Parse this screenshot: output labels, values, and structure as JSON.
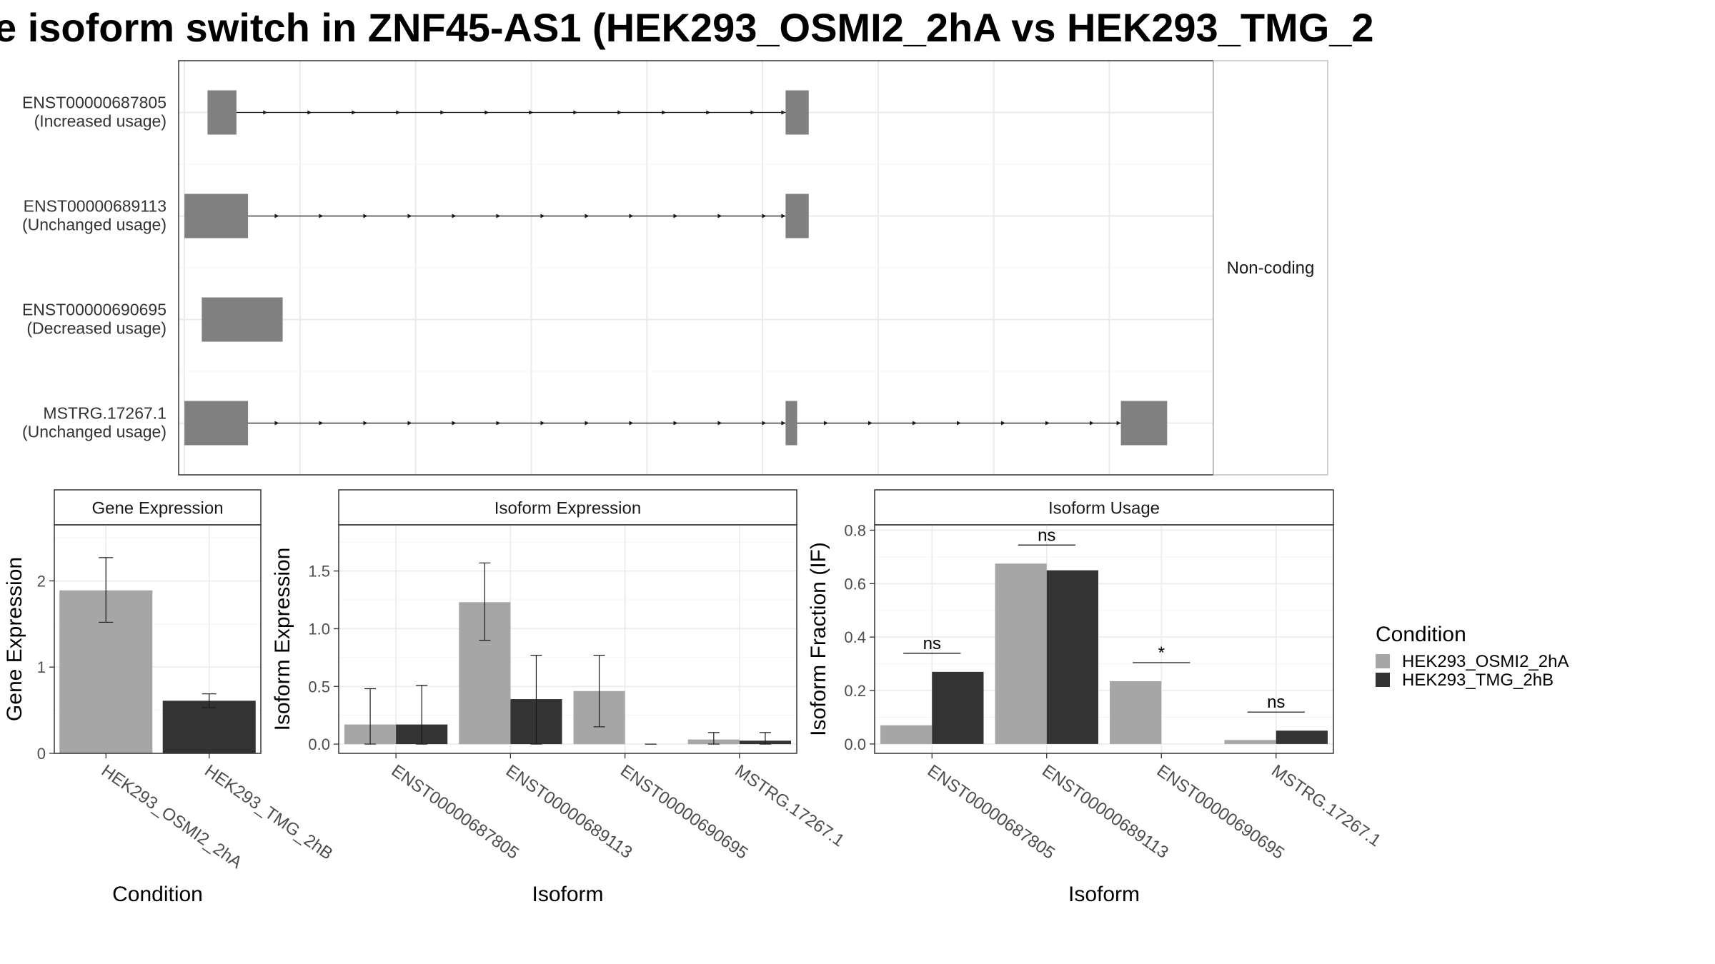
{
  "title": "e isoform switch in ZNF45-AS1 (HEK293_OSMI2_2hA vs HEK293_TMG_2",
  "colors": {
    "HEK293_OSMI2_2hA": "#a6a6a6",
    "HEK293_TMG_2hB": "#333333",
    "exon": "#808080",
    "grid": "#ebebeb"
  },
  "structure": {
    "strip_label": "Non-coding",
    "transcripts": [
      {
        "id": "ENST00000687805",
        "usage": "(Increased usage)",
        "exons": [
          [
            0.2,
            0.45
          ],
          [
            5.2,
            5.4
          ]
        ]
      },
      {
        "id": "ENST00000689113",
        "usage": "(Unchanged usage)",
        "exons": [
          [
            0.0,
            0.55
          ],
          [
            5.2,
            5.4
          ]
        ]
      },
      {
        "id": "ENST00000690695",
        "usage": "(Decreased usage)",
        "exons": [
          [
            0.15,
            0.85
          ]
        ]
      },
      {
        "id": "MSTRG.17267.1",
        "usage": "(Unchanged usage)",
        "exons": [
          [
            0.0,
            0.55
          ],
          [
            5.2,
            5.3
          ],
          [
            8.1,
            8.5
          ]
        ]
      }
    ]
  },
  "legend": {
    "title": "Condition",
    "items": [
      "HEK293_OSMI2_2hA",
      "HEK293_TMG_2hB"
    ]
  },
  "chart_data": [
    {
      "type": "bar",
      "title": "Gene Expression",
      "xlabel": "Condition",
      "ylabel": "Gene Expression",
      "categories": [
        "HEK293_OSMI2_2hA",
        "HEK293_TMG_2hB"
      ],
      "values": [
        1.89,
        0.61
      ],
      "errors": [
        [
          1.52,
          2.27
        ],
        [
          0.53,
          0.69
        ]
      ],
      "ylim": [
        0,
        2.65
      ],
      "yticks": [
        "0",
        "1",
        "2"
      ]
    },
    {
      "type": "bar",
      "title": "Isoform Expression",
      "xlabel": "Isoform",
      "ylabel": "Isoform Expression",
      "categories": [
        "ENST00000687805",
        "ENST00000689113",
        "ENST00000690695",
        "MSTRG.17267.1"
      ],
      "series": [
        {
          "name": "HEK293_OSMI2_2hA",
          "values": [
            0.17,
            1.23,
            0.46,
            0.04
          ],
          "errors": [
            [
              0.0,
              0.48
            ],
            [
              0.9,
              1.57
            ],
            [
              0.15,
              0.77
            ],
            [
              0.0,
              0.1
            ]
          ]
        },
        {
          "name": "HEK293_TMG_2hB",
          "values": [
            0.17,
            0.39,
            0.0,
            0.03
          ],
          "errors": [
            [
              0.0,
              0.51
            ],
            [
              0.0,
              0.77
            ],
            [
              0.0,
              0.0
            ],
            [
              0.0,
              0.1
            ]
          ]
        }
      ],
      "ylim": [
        -0.08,
        1.9
      ],
      "yticks": [
        "0.0",
        "0.5",
        "1.0",
        "1.5"
      ]
    },
    {
      "type": "bar",
      "title": "Isoform Usage",
      "xlabel": "Isoform",
      "ylabel": "Isoform Fraction (IF)",
      "categories": [
        "ENST00000687805",
        "ENST00000689113",
        "ENST00000690695",
        "MSTRG.17267.1"
      ],
      "series": [
        {
          "name": "HEK293_OSMI2_2hA",
          "values": [
            0.07,
            0.675,
            0.235,
            0.015
          ]
        },
        {
          "name": "HEK293_TMG_2hB",
          "values": [
            0.27,
            0.65,
            0.0,
            0.05
          ]
        }
      ],
      "significance": [
        "ns",
        "ns",
        "*",
        "ns"
      ],
      "ylim": [
        -0.035,
        0.82
      ],
      "yticks": [
        "0.0",
        "0.2",
        "0.4",
        "0.6",
        "0.8"
      ]
    }
  ]
}
